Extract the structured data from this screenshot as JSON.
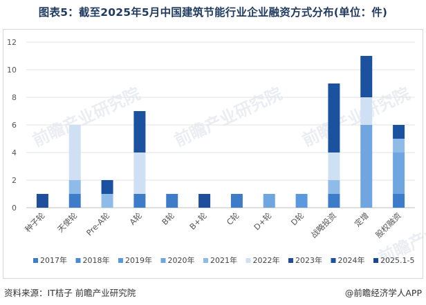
{
  "title": "图表5：截至2025年5月中国建筑节能行业企业融资方式分布(单位：件)",
  "source": "资料来源：IT桔子 前瞻产业研究院",
  "credit": "@前瞻经济学人APP",
  "watermark": "前瞻产业研究院",
  "chart_data": {
    "type": "bar",
    "stacked": true,
    "categories": [
      "种子轮",
      "天使轮",
      "Pre-A轮",
      "A轮",
      "B轮",
      "B+轮",
      "C轮",
      "D+轮",
      "D轮",
      "战略投资",
      "定增",
      "股权融资"
    ],
    "ylim": [
      0,
      12
    ],
    "yticks": [
      0,
      2,
      4,
      6,
      8,
      10,
      12
    ],
    "grid": true,
    "legend_position": "bottom",
    "series": [
      {
        "name": "2017年",
        "color": "#3d7cc9",
        "values": [
          0,
          1,
          0,
          1,
          1,
          0,
          1,
          0,
          0,
          1,
          0,
          1
        ]
      },
      {
        "name": "2018年",
        "color": "#4a8ad6",
        "values": [
          0,
          0,
          0,
          0,
          0,
          0,
          0,
          0,
          0,
          0,
          0,
          0
        ]
      },
      {
        "name": "2019年",
        "color": "#5b99de",
        "values": [
          0,
          0,
          0,
          0,
          0,
          0,
          0,
          0,
          1,
          0,
          0,
          0
        ]
      },
      {
        "name": "2020年",
        "color": "#6fa6e0",
        "values": [
          0,
          0,
          0,
          0,
          0,
          0,
          0,
          1,
          0,
          0,
          6,
          3
        ]
      },
      {
        "name": "2021年",
        "color": "#8ebbe8",
        "values": [
          0,
          1,
          1,
          0,
          0,
          0,
          0,
          0,
          0,
          1,
          0,
          1
        ]
      },
      {
        "name": "2022年",
        "color": "#cfe0f4",
        "values": [
          0,
          4,
          0,
          3,
          0,
          0,
          0,
          0,
          0,
          2,
          2,
          0
        ]
      },
      {
        "name": "2023年",
        "color": "#1f4e9c",
        "values": [
          1,
          0,
          0,
          0,
          0,
          1,
          0,
          0,
          0,
          0,
          0,
          0
        ]
      },
      {
        "name": "2024年",
        "color": "#1a52a0",
        "values": [
          0,
          0,
          1,
          3,
          0,
          0,
          0,
          0,
          0,
          5,
          3,
          1
        ]
      },
      {
        "name": "2025.1-5",
        "color": "#17479a",
        "values": [
          0,
          0,
          0,
          0,
          0,
          0,
          0,
          0,
          0,
          0,
          0,
          0
        ]
      }
    ]
  }
}
